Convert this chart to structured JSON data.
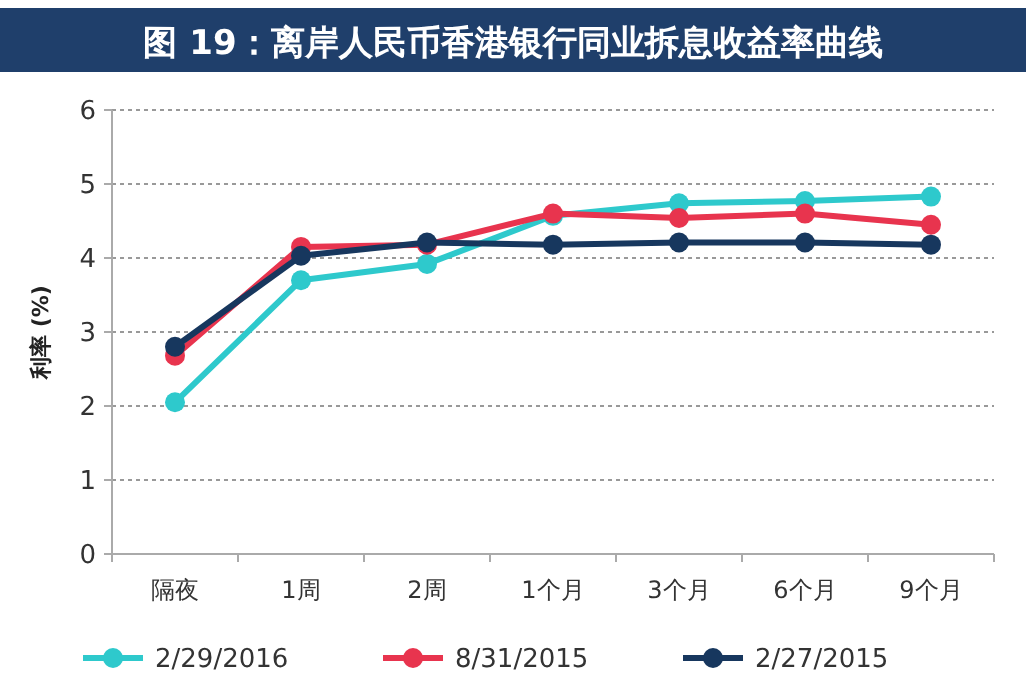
{
  "chart_data": {
    "type": "line",
    "title": "图 19：离岸人民币香港银行同业拆息收益率曲线",
    "ylabel": "利率 (%)",
    "categories": [
      "隔夜",
      "1周",
      "2周",
      "1个月",
      "3个月",
      "6个月",
      "9个月"
    ],
    "series": [
      {
        "name": "2/29/2016",
        "color": "#2ec9cc",
        "values": [
          2.05,
          3.7,
          3.92,
          4.57,
          4.74,
          4.77,
          4.83
        ]
      },
      {
        "name": "8/31/2015",
        "color": "#e8344e",
        "values": [
          2.68,
          4.15,
          4.18,
          4.6,
          4.54,
          4.6,
          4.45
        ]
      },
      {
        "name": "2/27/2015",
        "color": "#17375e",
        "values": [
          2.8,
          4.03,
          4.21,
          4.18,
          4.21,
          4.21,
          4.18
        ]
      }
    ],
    "ylim": [
      0,
      6
    ],
    "yticks": [
      0,
      1,
      2,
      3,
      4,
      5,
      6
    ],
    "grid": "y",
    "legend": "bottom",
    "marker": "circle",
    "line_style": "solid"
  }
}
